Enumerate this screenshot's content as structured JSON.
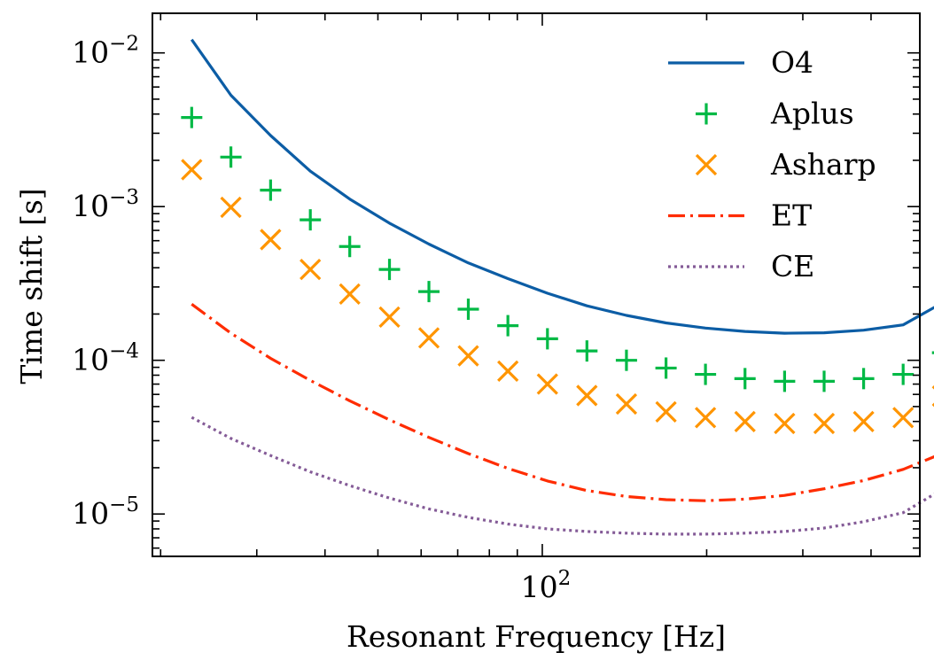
{
  "chart_data": {
    "type": "line",
    "title": "",
    "xlabel": "Resonant Frequency [Hz]",
    "ylabel": "Time shift [s]",
    "xscale": "log",
    "yscale": "log",
    "xlim": [
      19.32,
      491.35
    ],
    "ylim": [
      5.3e-06,
      0.0181
    ],
    "xtick_labels": [
      {
        "value": 100,
        "base": "10",
        "exp": "2"
      }
    ],
    "ytick_labels": [
      {
        "value": 1e-05,
        "base": "10",
        "exp": "−5"
      },
      {
        "value": 0.0001,
        "base": "10",
        "exp": "−4"
      },
      {
        "value": 0.001,
        "base": "10",
        "exp": "−3"
      },
      {
        "value": 0.01,
        "base": "10",
        "exp": "−2"
      }
    ],
    "grid": false,
    "legend_position": "top-right",
    "x": [
      22.8,
      26.9,
      31.8,
      37.6,
      44.4,
      52.5,
      62.0,
      73.2,
      86.5,
      102.2,
      120.7,
      142.6,
      168.5,
      199.0,
      235.1,
      277.8,
      328.2,
      387.7,
      458.0
    ],
    "series": [
      {
        "name": "O4",
        "style": "solid",
        "color": "#0c5da5",
        "values": [
          0.0122,
          0.0053,
          0.0029,
          0.0017,
          0.00112,
          0.00078,
          0.00057,
          0.00043,
          0.00034,
          0.000273,
          0.000226,
          0.000196,
          0.000175,
          0.000162,
          0.000154,
          0.00015,
          0.000151,
          0.000157,
          0.00017
        ]
      },
      {
        "name": "Aplus",
        "style": "plus",
        "color": "#00b945",
        "values": [
          0.0038,
          0.0021,
          0.00128,
          0.00082,
          0.00055,
          0.00039,
          0.00028,
          0.000215,
          0.000168,
          0.000138,
          0.000115,
          0.0001,
          8.9e-05,
          8.1e-05,
          7.6e-05,
          7.3e-05,
          7.3e-05,
          7.6e-05,
          8.1e-05
        ]
      },
      {
        "name": "Asharp",
        "style": "x",
        "color": "#ff9500",
        "values": [
          0.00174,
          0.00099,
          0.00061,
          0.00039,
          0.00027,
          0.000191,
          0.00014,
          0.000107,
          8.5e-05,
          7e-05,
          5.9e-05,
          5.2e-05,
          4.62e-05,
          4.24e-05,
          3.99e-05,
          3.88e-05,
          3.88e-05,
          3.99e-05,
          4.24e-05
        ]
      },
      {
        "name": "ET",
        "style": "dashdot",
        "color": "#ff2c00",
        "values": [
          0.000232,
          0.00015,
          0.000103,
          7.4e-05,
          5.45e-05,
          4.1e-05,
          3.15e-05,
          2.47e-05,
          1.98e-05,
          1.64e-05,
          1.42e-05,
          1.3e-05,
          1.24e-05,
          1.22e-05,
          1.25e-05,
          1.32e-05,
          1.46e-05,
          1.65e-05,
          1.95e-05
        ]
      },
      {
        "name": "CE",
        "style": "dotted",
        "color": "#845b97",
        "values": [
          4.25e-05,
          3.1e-05,
          2.4e-05,
          1.88e-05,
          1.53e-05,
          1.27e-05,
          1.08e-05,
          9.5e-06,
          8.6e-06,
          8e-06,
          7.7e-06,
          7.5e-06,
          7.4e-06,
          7.4e-06,
          7.5e-06,
          7.7e-06,
          8.1e-06,
          8.9e-06,
          1.02e-05
        ]
      }
    ],
    "series_end": {
      "x": 540.9,
      "values": [
        0.000237,
        0.000112,
        5.85e-05,
        2.48e-05,
        1.45e-05
      ]
    }
  }
}
